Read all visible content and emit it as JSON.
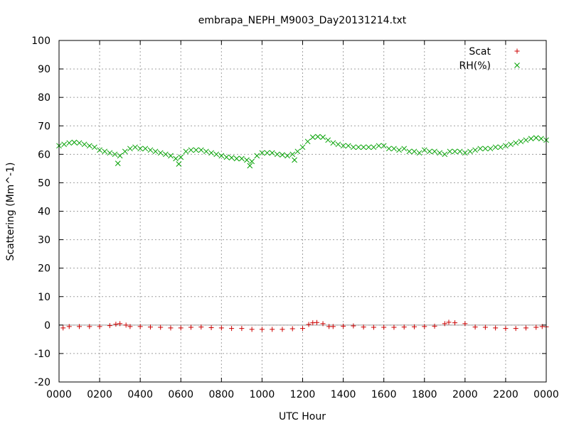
{
  "chart_data": {
    "type": "scatter",
    "title": "embrapa_NEPH_M9003_Day20131214.txt",
    "xlabel": "UTC Hour",
    "ylabel": "Scattering (Mm^-1)",
    "xlim": [
      0,
      2400
    ],
    "ylim": [
      -20,
      100
    ],
    "x_ticks": [
      "0000",
      "0200",
      "0400",
      "0600",
      "0800",
      "1000",
      "1200",
      "1400",
      "1600",
      "1800",
      "2000",
      "2200",
      "0000"
    ],
    "y_ticks": [
      "-20",
      "-10",
      "0",
      "10",
      "20",
      "30",
      "40",
      "50",
      "60",
      "70",
      "80",
      "90",
      "100"
    ],
    "grid": true,
    "legend_position": "top-right",
    "zero_line": true,
    "series": [
      {
        "name": "Scat",
        "marker": "+",
        "color": "#cc0000",
        "x": [
          20,
          50,
          100,
          150,
          200,
          250,
          280,
          300,
          330,
          350,
          400,
          450,
          500,
          550,
          600,
          650,
          700,
          750,
          800,
          850,
          900,
          950,
          1000,
          1050,
          1100,
          1150,
          1200,
          1230,
          1250,
          1270,
          1300,
          1330,
          1350,
          1400,
          1450,
          1500,
          1550,
          1600,
          1650,
          1700,
          1750,
          1800,
          1850,
          1900,
          1920,
          1950,
          2000,
          2050,
          2100,
          2150,
          2200,
          2250,
          2300,
          2350,
          2380,
          2400
        ],
        "y": [
          -1.0,
          -0.5,
          -0.5,
          -0.5,
          -0.5,
          -0.2,
          0.3,
          0.5,
          0,
          -0.5,
          -0.5,
          -0.7,
          -0.8,
          -1.0,
          -1.0,
          -0.8,
          -0.7,
          -0.9,
          -1.0,
          -1.2,
          -1.2,
          -1.5,
          -1.5,
          -1.5,
          -1.5,
          -1.3,
          -1.2,
          0.2,
          0.8,
          0.9,
          0.5,
          -0.5,
          -0.5,
          -0.4,
          -0.3,
          -0.7,
          -0.8,
          -0.8,
          -0.8,
          -0.7,
          -0.6,
          -0.5,
          -0.4,
          0.5,
          1.0,
          0.8,
          0.5,
          -0.7,
          -0.8,
          -1.0,
          -1.2,
          -1.2,
          -1.0,
          -0.8,
          -0.5,
          -0.6
        ]
      },
      {
        "name": "RH(%)",
        "marker": "x",
        "color": "#00a000",
        "x": [
          0,
          25,
          50,
          75,
          100,
          125,
          150,
          175,
          200,
          225,
          250,
          275,
          290,
          300,
          325,
          350,
          375,
          400,
          425,
          450,
          475,
          500,
          525,
          550,
          575,
          590,
          600,
          625,
          650,
          675,
          700,
          725,
          750,
          775,
          800,
          825,
          850,
          875,
          900,
          925,
          940,
          950,
          975,
          1000,
          1025,
          1050,
          1075,
          1100,
          1125,
          1150,
          1160,
          1175,
          1200,
          1225,
          1250,
          1275,
          1300,
          1325,
          1350,
          1375,
          1400,
          1425,
          1450,
          1475,
          1500,
          1525,
          1550,
          1575,
          1600,
          1625,
          1650,
          1675,
          1700,
          1725,
          1750,
          1775,
          1800,
          1825,
          1850,
          1875,
          1900,
          1925,
          1950,
          1975,
          2000,
          2025,
          2050,
          2075,
          2100,
          2125,
          2150,
          2175,
          2200,
          2225,
          2250,
          2275,
          2300,
          2325,
          2350,
          2375,
          2400
        ],
        "y": [
          63.0,
          63.5,
          64.0,
          64.2,
          64.0,
          63.5,
          63.0,
          62.5,
          61.5,
          61.0,
          60.5,
          60.0,
          56.8,
          59.5,
          61.0,
          62.0,
          62.5,
          62.0,
          62.0,
          61.5,
          61.0,
          60.5,
          60.0,
          59.5,
          58.5,
          56.6,
          59.0,
          61.0,
          61.5,
          61.5,
          61.5,
          61.0,
          60.5,
          60.0,
          59.5,
          59.0,
          58.8,
          58.5,
          58.5,
          58.0,
          56.0,
          57.5,
          59.5,
          60.5,
          60.5,
          60.5,
          60.0,
          59.8,
          59.5,
          60.0,
          58.0,
          61.0,
          62.5,
          64.5,
          66.0,
          66.2,
          66.0,
          65.0,
          64.0,
          63.5,
          63.0,
          63.0,
          62.5,
          62.5,
          62.5,
          62.5,
          62.5,
          63.0,
          63.0,
          62.0,
          62.0,
          61.5,
          62.0,
          61.0,
          61.0,
          60.5,
          61.5,
          61.0,
          61.0,
          60.5,
          60.0,
          61.0,
          61.0,
          61.0,
          60.5,
          61.0,
          61.5,
          62.0,
          62.0,
          62.0,
          62.5,
          62.5,
          63.0,
          63.5,
          64.0,
          64.5,
          65.0,
          65.5,
          65.8,
          65.5,
          65.0
        ]
      }
    ]
  }
}
